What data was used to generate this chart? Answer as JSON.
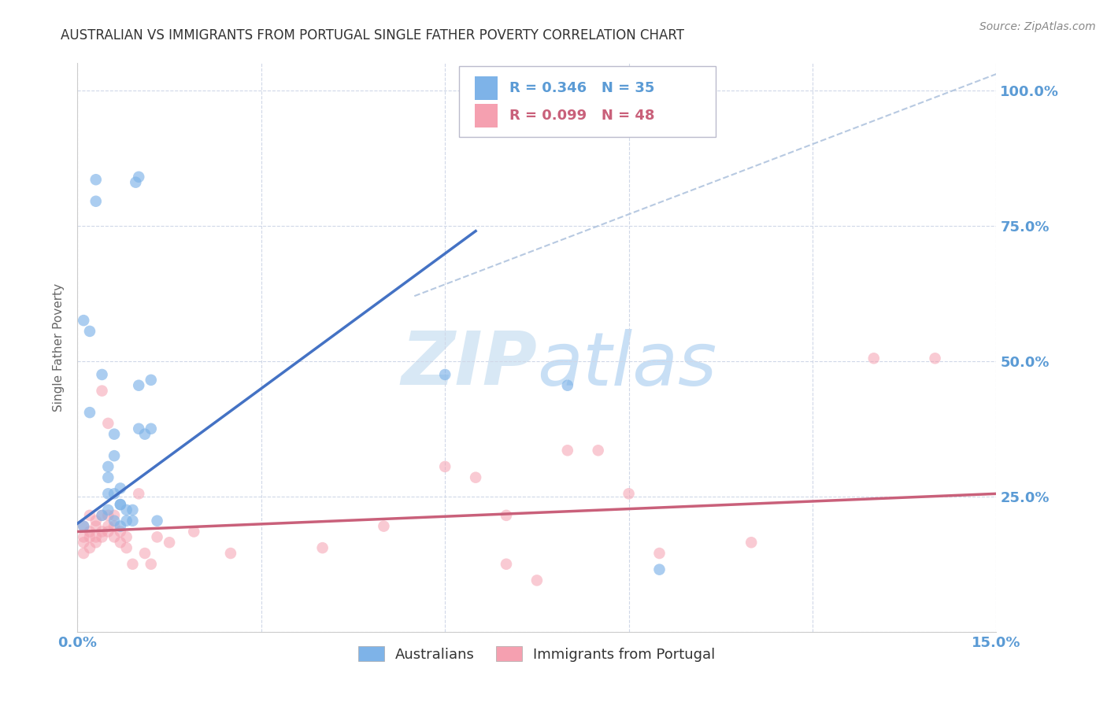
{
  "title": "AUSTRALIAN VS IMMIGRANTS FROM PORTUGAL SINGLE FATHER POVERTY CORRELATION CHART",
  "source": "Source: ZipAtlas.com",
  "ylabel": "Single Father Poverty",
  "x_min": 0.0,
  "x_max": 0.15,
  "y_min": 0.0,
  "y_max": 1.05,
  "blue_line": [
    [
      0.0,
      0.2
    ],
    [
      0.065,
      0.74
    ]
  ],
  "pink_line": [
    [
      0.0,
      0.185
    ],
    [
      0.15,
      0.255
    ]
  ],
  "diag_line": [
    [
      0.055,
      0.62
    ],
    [
      0.15,
      1.03
    ]
  ],
  "blue_points": [
    [
      0.001,
      0.195
    ],
    [
      0.002,
      0.555
    ],
    [
      0.0095,
      0.83
    ],
    [
      0.01,
      0.84
    ],
    [
      0.004,
      0.215
    ],
    [
      0.004,
      0.475
    ],
    [
      0.005,
      0.285
    ],
    [
      0.005,
      0.305
    ],
    [
      0.005,
      0.225
    ],
    [
      0.005,
      0.255
    ],
    [
      0.006,
      0.255
    ],
    [
      0.006,
      0.205
    ],
    [
      0.006,
      0.325
    ],
    [
      0.006,
      0.365
    ],
    [
      0.007,
      0.265
    ],
    [
      0.007,
      0.235
    ],
    [
      0.007,
      0.195
    ],
    [
      0.007,
      0.235
    ],
    [
      0.008,
      0.205
    ],
    [
      0.008,
      0.225
    ],
    [
      0.009,
      0.225
    ],
    [
      0.009,
      0.205
    ],
    [
      0.003,
      0.795
    ],
    [
      0.003,
      0.835
    ],
    [
      0.01,
      0.455
    ],
    [
      0.01,
      0.375
    ],
    [
      0.011,
      0.365
    ],
    [
      0.012,
      0.465
    ],
    [
      0.012,
      0.375
    ],
    [
      0.013,
      0.205
    ],
    [
      0.002,
      0.405
    ],
    [
      0.06,
      0.475
    ],
    [
      0.08,
      0.455
    ],
    [
      0.095,
      0.115
    ],
    [
      0.001,
      0.575
    ]
  ],
  "pink_points": [
    [
      0.001,
      0.165
    ],
    [
      0.001,
      0.195
    ],
    [
      0.001,
      0.175
    ],
    [
      0.001,
      0.145
    ],
    [
      0.002,
      0.185
    ],
    [
      0.002,
      0.155
    ],
    [
      0.002,
      0.175
    ],
    [
      0.002,
      0.215
    ],
    [
      0.003,
      0.165
    ],
    [
      0.003,
      0.205
    ],
    [
      0.003,
      0.195
    ],
    [
      0.003,
      0.175
    ],
    [
      0.004,
      0.185
    ],
    [
      0.004,
      0.215
    ],
    [
      0.004,
      0.175
    ],
    [
      0.004,
      0.445
    ],
    [
      0.005,
      0.215
    ],
    [
      0.005,
      0.195
    ],
    [
      0.005,
      0.185
    ],
    [
      0.005,
      0.385
    ],
    [
      0.006,
      0.175
    ],
    [
      0.006,
      0.215
    ],
    [
      0.006,
      0.195
    ],
    [
      0.007,
      0.185
    ],
    [
      0.007,
      0.165
    ],
    [
      0.008,
      0.155
    ],
    [
      0.008,
      0.175
    ],
    [
      0.009,
      0.125
    ],
    [
      0.01,
      0.255
    ],
    [
      0.011,
      0.145
    ],
    [
      0.012,
      0.125
    ],
    [
      0.013,
      0.175
    ],
    [
      0.015,
      0.165
    ],
    [
      0.019,
      0.185
    ],
    [
      0.025,
      0.145
    ],
    [
      0.04,
      0.155
    ],
    [
      0.05,
      0.195
    ],
    [
      0.06,
      0.305
    ],
    [
      0.065,
      0.285
    ],
    [
      0.07,
      0.215
    ],
    [
      0.07,
      0.125
    ],
    [
      0.075,
      0.095
    ],
    [
      0.08,
      0.335
    ],
    [
      0.085,
      0.335
    ],
    [
      0.09,
      0.255
    ],
    [
      0.095,
      0.145
    ],
    [
      0.11,
      0.165
    ],
    [
      0.13,
      0.505
    ],
    [
      0.14,
      0.505
    ]
  ],
  "blue_color": "#7EB3E8",
  "pink_color": "#F5A0B0",
  "blue_line_color": "#4472C4",
  "pink_line_color": "#C9607A",
  "diag_line_color": "#B0C4DE",
  "axis_label_color": "#5B9BD5",
  "grid_color": "#D0D8E8",
  "marker_size": 110,
  "alpha_blue": 0.65,
  "alpha_pink": 0.55,
  "watermark_color": "#D8E8F5",
  "source_color": "#888888"
}
